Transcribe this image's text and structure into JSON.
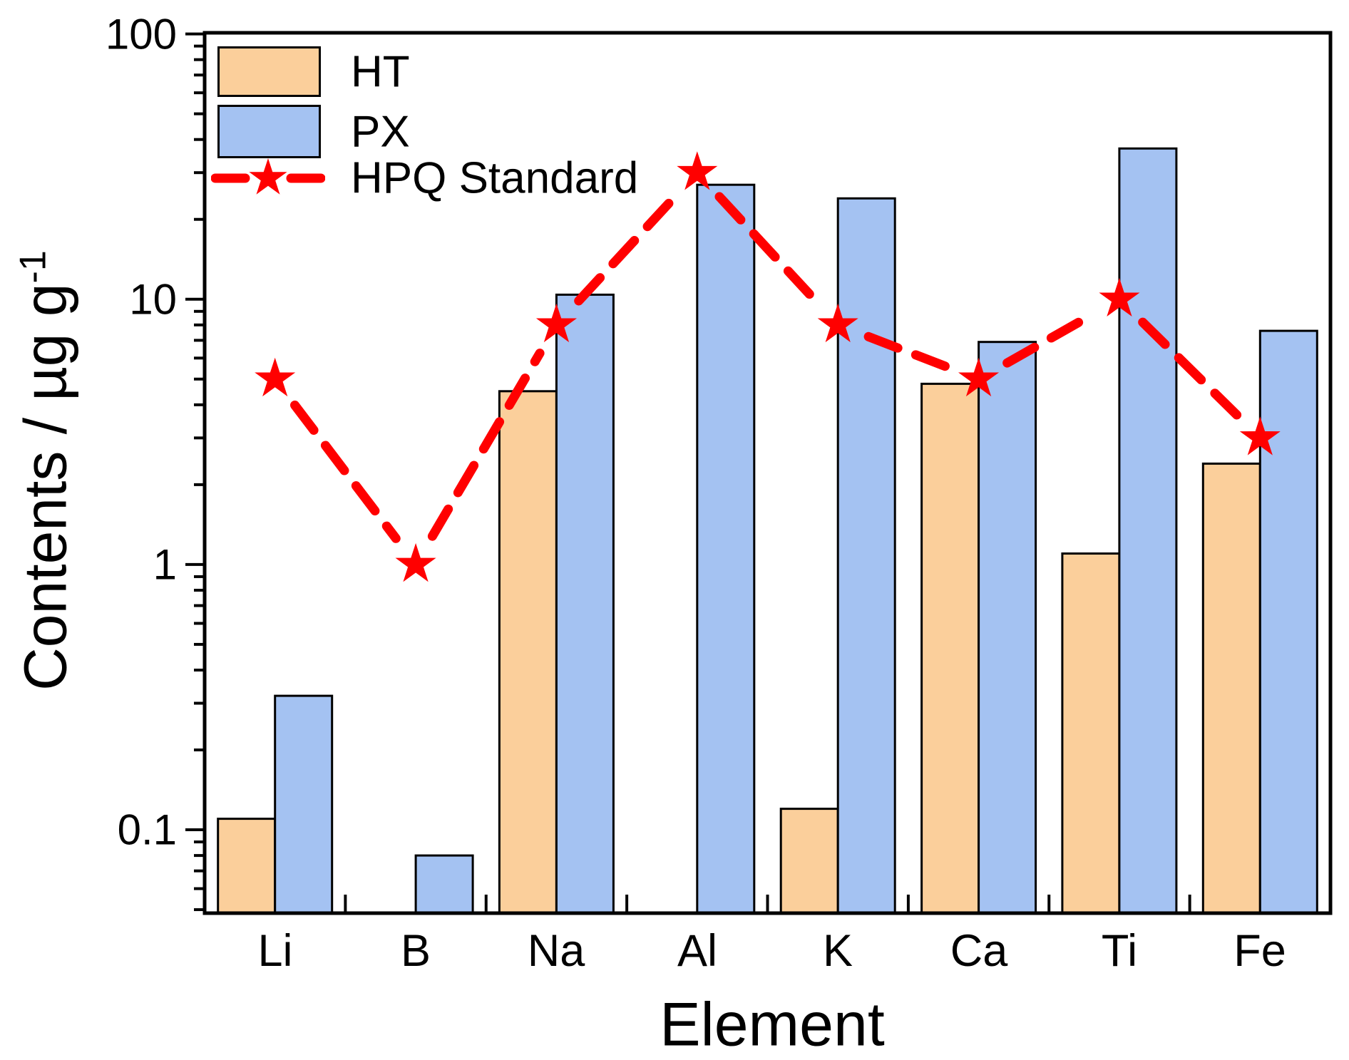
{
  "figure": {
    "background": "#FFFFFF"
  },
  "axes": {
    "y": {
      "label": "Contents / µg g",
      "label_sup": "-1",
      "tick_labels": [
        "100",
        "10",
        "1",
        "0.1"
      ],
      "scale": "log"
    },
    "x": {
      "label": "Element"
    }
  },
  "legend": {
    "items": [
      {
        "label": "HT",
        "swatch": "bar",
        "color": "#FBCF9B"
      },
      {
        "label": "PX",
        "swatch": "bar",
        "color": "#A4C2F2"
      },
      {
        "label": "HPQ Standard",
        "swatch": "line-star",
        "color": "#FF0000"
      }
    ]
  },
  "chart_data": {
    "type": "bar",
    "categories": [
      "Li",
      "B",
      "Na",
      "Al",
      "K",
      "Ca",
      "Ti",
      "Fe"
    ],
    "series": [
      {
        "name": "HT",
        "type": "bar",
        "color": "#FBCF9B",
        "values": [
          0.11,
          null,
          4.5,
          null,
          0.12,
          4.8,
          1.1,
          2.4
        ]
      },
      {
        "name": "PX",
        "type": "bar",
        "color": "#A4C2F2",
        "values": [
          0.32,
          0.08,
          10.4,
          27,
          24,
          6.9,
          37,
          7.6
        ]
      },
      {
        "name": "HPQ Standard",
        "type": "line",
        "marker": "star",
        "color": "#FF0000",
        "values": [
          5,
          1,
          8,
          30,
          8,
          5,
          10,
          3
        ]
      }
    ],
    "title": "",
    "xlabel": "Element",
    "ylabel": "Contents / µg g⁻¹",
    "yscale": "log",
    "ylim": [
      0.0485,
      101
    ],
    "y_major_ticks": [
      100,
      10,
      1,
      0.1
    ],
    "grid": false,
    "legend_position": "top-left"
  }
}
